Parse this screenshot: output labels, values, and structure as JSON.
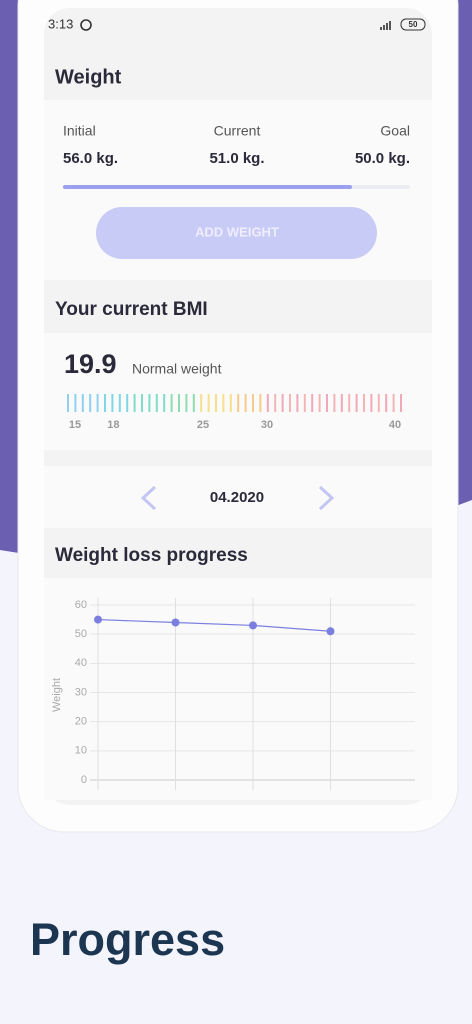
{
  "status_bar": {
    "time": "3:13",
    "battery": "50"
  },
  "weight": {
    "title": "Weight",
    "initial": {
      "label": "Initial",
      "value": "56.0 kg."
    },
    "current": {
      "label": "Current",
      "value": "51.0 kg."
    },
    "goal": {
      "label": "Goal",
      "value": "50.0 kg."
    },
    "button": "ADD WEIGHT"
  },
  "bmi": {
    "title": "Your current BMI",
    "value": "19.9",
    "status": "Normal weight",
    "scale": {
      "lim": [
        15,
        40
      ],
      "ticks": [
        15,
        18,
        25,
        30,
        40
      ]
    }
  },
  "month": "04.2020",
  "chart_data": {
    "type": "line",
    "title": "Weight loss progress",
    "y_label": "Weight",
    "categories": [
      null,
      null,
      null,
      null
    ],
    "series": [
      {
        "color": "#7b7fe0",
        "values": [
          55,
          54,
          53,
          51
        ]
      }
    ],
    "ylim": [
      0,
      60
    ],
    "yticks": [
      0,
      10,
      20,
      30,
      40,
      50,
      60
    ],
    "grid": true
  },
  "caption": "Progress"
}
